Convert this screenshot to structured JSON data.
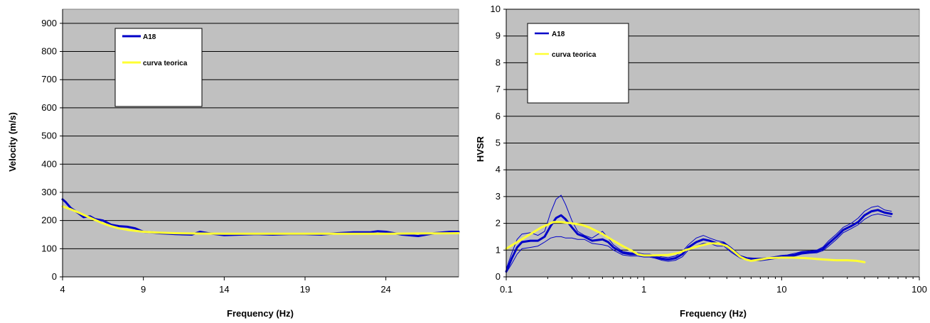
{
  "charts": [
    {
      "type": "line",
      "xlabel": "Frequency (Hz)",
      "ylabel": "Velocity (m/s)",
      "xlim": [
        4,
        28.5
      ],
      "ylim": [
        0,
        950
      ],
      "xticks": [
        4,
        9,
        14,
        19,
        24
      ],
      "yticks": [
        0,
        100,
        200,
        300,
        400,
        500,
        600,
        700,
        800,
        900
      ],
      "x_scale": "linear",
      "grid": "horizontal",
      "plot_background": "#c0c0c0",
      "legend": {
        "placement": "top-left"
      },
      "series": [
        {
          "name": "A18",
          "color": "#0000c8",
          "x": [
            4,
            4.2,
            4.5,
            5,
            5.3,
            5.7,
            6,
            6.5,
            7,
            7.5,
            8,
            8.5,
            9,
            9.5,
            10,
            11,
            12,
            12.5,
            13,
            14,
            15,
            16,
            17,
            18,
            19,
            20,
            21,
            22,
            23,
            23.5,
            24,
            25,
            26,
            27,
            28,
            28.5
          ],
          "values": [
            275,
            265,
            245,
            225,
            212,
            215,
            205,
            200,
            185,
            180,
            178,
            172,
            160,
            158,
            155,
            152,
            150,
            160,
            155,
            148,
            150,
            152,
            150,
            152,
            152,
            150,
            155,
            158,
            158,
            162,
            160,
            150,
            145,
            155,
            160,
            160
          ]
        },
        {
          "name": "curva teorica",
          "color": "#ffff33",
          "x": [
            4,
            4.5,
            5,
            5.5,
            6,
            6.5,
            7,
            7.5,
            8,
            9,
            10,
            11,
            12,
            14,
            16,
            18,
            20,
            22,
            24,
            26,
            28.5
          ],
          "values": [
            250,
            240,
            228,
            215,
            202,
            190,
            180,
            172,
            167,
            160,
            157,
            155,
            154,
            153,
            153,
            153,
            153,
            153,
            153,
            154,
            155
          ]
        }
      ]
    },
    {
      "type": "line",
      "xlabel": "Frequency (Hz)",
      "ylabel": "HVSR",
      "xlim": [
        0.1,
        100
      ],
      "ylim": [
        0,
        10
      ],
      "xticks": [
        0.1,
        1,
        10,
        100
      ],
      "xtick_labels": [
        "0.1",
        "1",
        "10",
        "100"
      ],
      "yticks": [
        0,
        1,
        2,
        3,
        4,
        5,
        6,
        7,
        8,
        9,
        10
      ],
      "x_scale": "log",
      "grid": "horizontal",
      "plot_background": "#c0c0c0",
      "legend": {
        "placement": "top-left"
      },
      "series": [
        {
          "name": "A18",
          "color": "#0000c8",
          "x": [
            0.1,
            0.11,
            0.12,
            0.13,
            0.15,
            0.17,
            0.19,
            0.21,
            0.23,
            0.25,
            0.27,
            0.3,
            0.33,
            0.37,
            0.42,
            0.5,
            0.55,
            0.6,
            0.7,
            0.8,
            0.9,
            1.0,
            1.1,
            1.2,
            1.35,
            1.5,
            1.7,
            1.9,
            2.1,
            2.4,
            2.7,
            3.0,
            3.4,
            3.8,
            4.3,
            5.0,
            5.6,
            6.3,
            7.0,
            8.0,
            9.0,
            10,
            11,
            12.5,
            14,
            16,
            18,
            20,
            22,
            25,
            28,
            32,
            36,
            40,
            45,
            50,
            56,
            63
          ],
          "values": [
            0.2,
            0.7,
            1.1,
            1.3,
            1.35,
            1.35,
            1.5,
            1.9,
            2.2,
            2.3,
            2.15,
            1.85,
            1.6,
            1.5,
            1.35,
            1.4,
            1.3,
            1.1,
            0.9,
            0.85,
            0.85,
            0.8,
            0.8,
            0.75,
            0.68,
            0.65,
            0.7,
            0.85,
            1.1,
            1.3,
            1.4,
            1.35,
            1.25,
            1.25,
            1.0,
            0.75,
            0.68,
            0.65,
            0.65,
            0.68,
            0.72,
            0.75,
            0.78,
            0.82,
            0.9,
            0.92,
            0.95,
            1.05,
            1.25,
            1.5,
            1.75,
            1.9,
            2.05,
            2.3,
            2.45,
            2.5,
            2.4,
            2.35
          ],
          "upper": [
            0.3,
            0.9,
            1.4,
            1.6,
            1.65,
            1.55,
            1.7,
            2.4,
            2.9,
            3.05,
            2.7,
            2.1,
            1.7,
            1.55,
            1.45,
            1.7,
            1.45,
            1.2,
            0.95,
            0.9,
            0.9,
            0.85,
            0.85,
            0.8,
            0.75,
            0.72,
            0.78,
            0.95,
            1.2,
            1.45,
            1.55,
            1.45,
            1.35,
            1.3,
            1.1,
            0.8,
            0.72,
            0.7,
            0.7,
            0.72,
            0.76,
            0.8,
            0.82,
            0.88,
            0.95,
            0.97,
            1.0,
            1.12,
            1.35,
            1.6,
            1.85,
            2.0,
            2.2,
            2.45,
            2.6,
            2.65,
            2.5,
            2.45
          ],
          "lower": [
            0.15,
            0.5,
            0.85,
            1.05,
            1.1,
            1.15,
            1.3,
            1.45,
            1.5,
            1.5,
            1.45,
            1.45,
            1.4,
            1.4,
            1.25,
            1.2,
            1.15,
            1.0,
            0.82,
            0.78,
            0.78,
            0.74,
            0.74,
            0.7,
            0.62,
            0.58,
            0.62,
            0.75,
            1.0,
            1.15,
            1.25,
            1.25,
            1.15,
            1.15,
            0.92,
            0.7,
            0.62,
            0.6,
            0.6,
            0.64,
            0.68,
            0.7,
            0.74,
            0.78,
            0.85,
            0.88,
            0.9,
            0.98,
            1.15,
            1.4,
            1.65,
            1.8,
            1.95,
            2.15,
            2.3,
            2.35,
            2.3,
            2.25
          ]
        },
        {
          "name": "curva teorica",
          "color": "#ffff33",
          "x": [
            0.1,
            0.12,
            0.15,
            0.18,
            0.2,
            0.22,
            0.25,
            0.3,
            0.35,
            0.4,
            0.5,
            0.6,
            0.7,
            0.8,
            0.9,
            1.0,
            1.2,
            1.5,
            1.8,
            2.0,
            2.5,
            3.0,
            3.5,
            4.0,
            4.5,
            5.0,
            5.5,
            6.0,
            7.0,
            8.0,
            10,
            12,
            15,
            20,
            25,
            30,
            35,
            40
          ],
          "values": [
            1.05,
            1.3,
            1.6,
            1.85,
            1.95,
            2.05,
            2.05,
            2.0,
            1.95,
            1.85,
            1.6,
            1.35,
            1.15,
            1.0,
            0.85,
            0.8,
            0.8,
            0.82,
            0.9,
            1.0,
            1.15,
            1.25,
            1.25,
            1.15,
            0.95,
            0.75,
            0.65,
            0.6,
            0.65,
            0.7,
            0.72,
            0.72,
            0.7,
            0.65,
            0.62,
            0.62,
            0.6,
            0.55
          ]
        }
      ]
    }
  ]
}
